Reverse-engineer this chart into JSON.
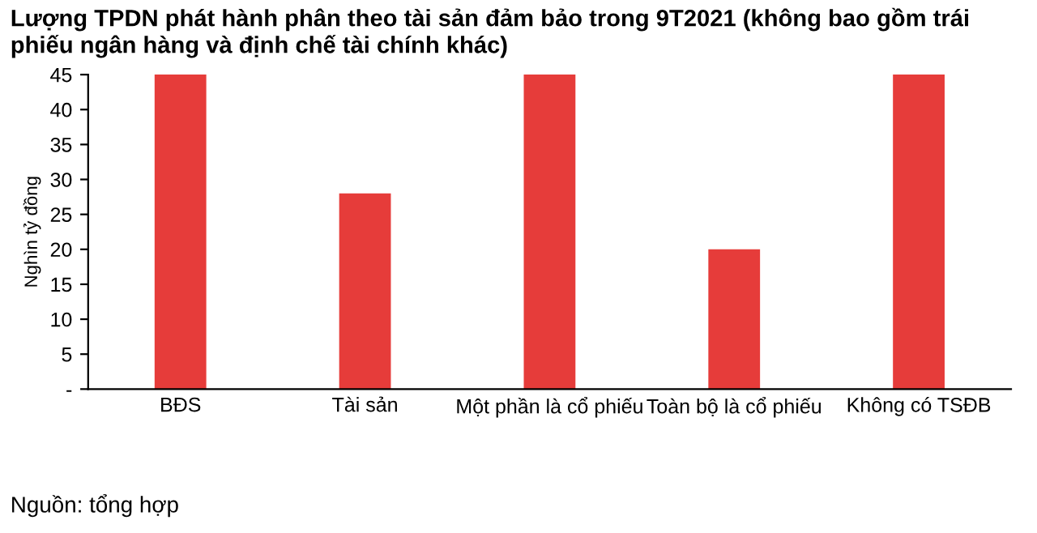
{
  "chart_data": {
    "type": "bar",
    "title": "Lượng TPDN phát hành phân theo tài sản đảm bảo trong 9T2021 (không bao gồm trái phiếu ngân hàng và định chế tài chính khác)",
    "ylabel": "Nghìn tỷ đồng",
    "categories": [
      "BĐS",
      "Tài sản",
      "Một phần là cổ phiếu",
      "Toàn bộ là cổ phiếu",
      "Không có TSĐB"
    ],
    "values": [
      45,
      28,
      45,
      20,
      45
    ],
    "color": "#e63c3a",
    "ylim": [
      0,
      45
    ],
    "yticks": [
      {
        "value": 0,
        "label": "-"
      },
      5,
      10,
      15,
      20,
      25,
      30,
      35,
      40,
      45
    ],
    "grid": false,
    "annotations": [
      "Nguồn: tổng hợp"
    ]
  }
}
